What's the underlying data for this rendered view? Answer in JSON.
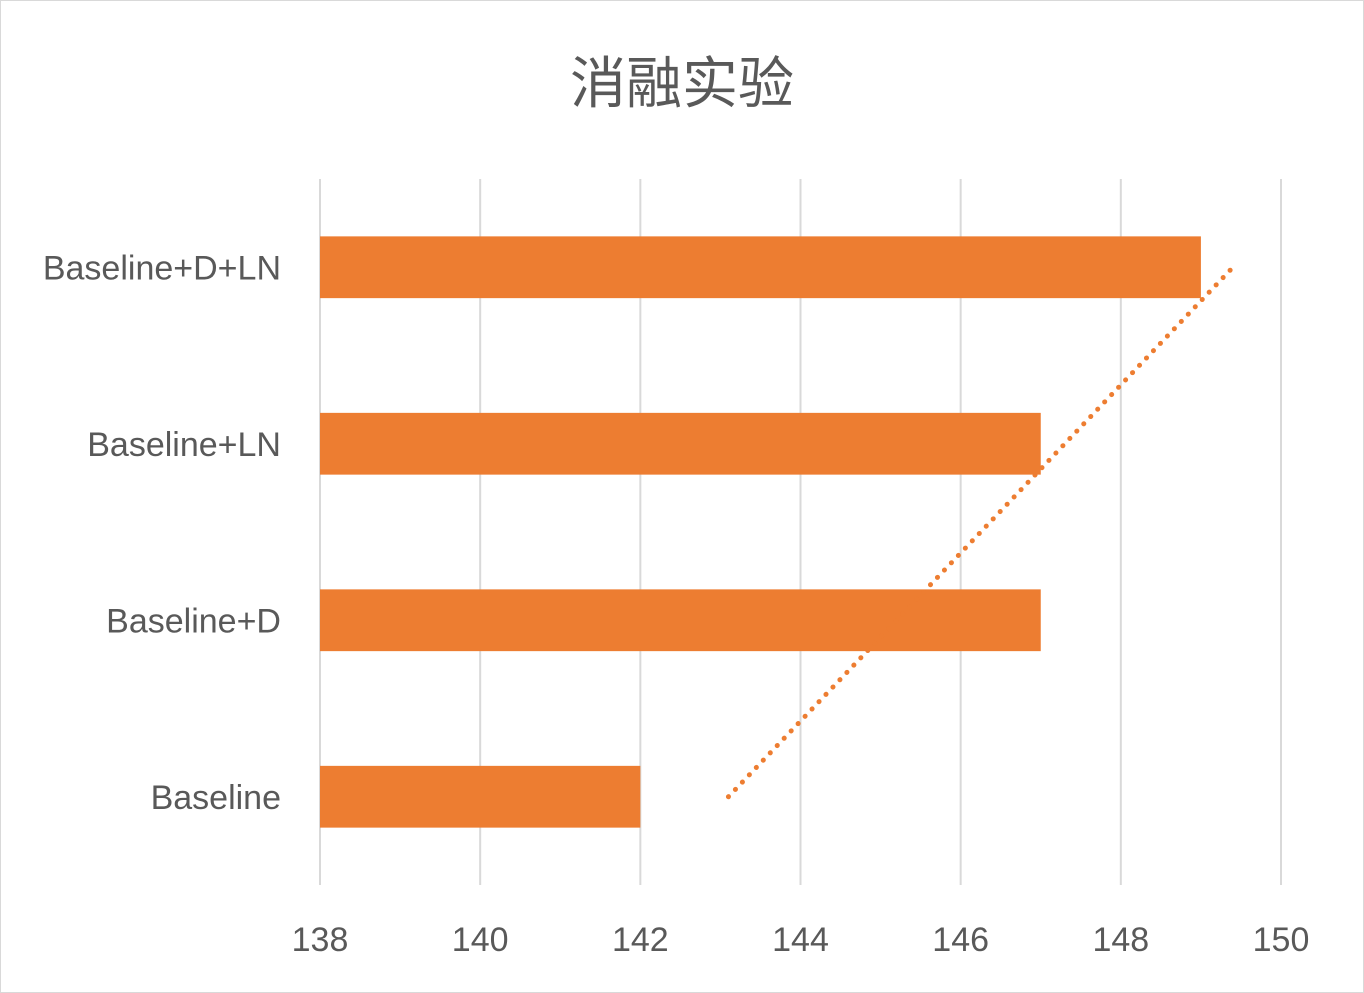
{
  "chart_data": {
    "type": "bar",
    "orientation": "horizontal",
    "title": "消融实验",
    "categories": [
      "Baseline",
      "Baseline+D",
      "Baseline+LN",
      "Baseline+D+LN"
    ],
    "values": [
      142,
      147,
      147,
      149
    ],
    "xlim": [
      138,
      150
    ],
    "xticks": [
      "138",
      "140",
      "142",
      "144",
      "146",
      "148",
      "150"
    ],
    "grid": "vertical",
    "legend": "none",
    "trendline": {
      "type": "linear",
      "style": "dotted"
    },
    "colors": {
      "bar": "#ED7D31",
      "grid": "#d9d9d9",
      "text": "#595959",
      "trendline": "#ED7D31"
    }
  }
}
